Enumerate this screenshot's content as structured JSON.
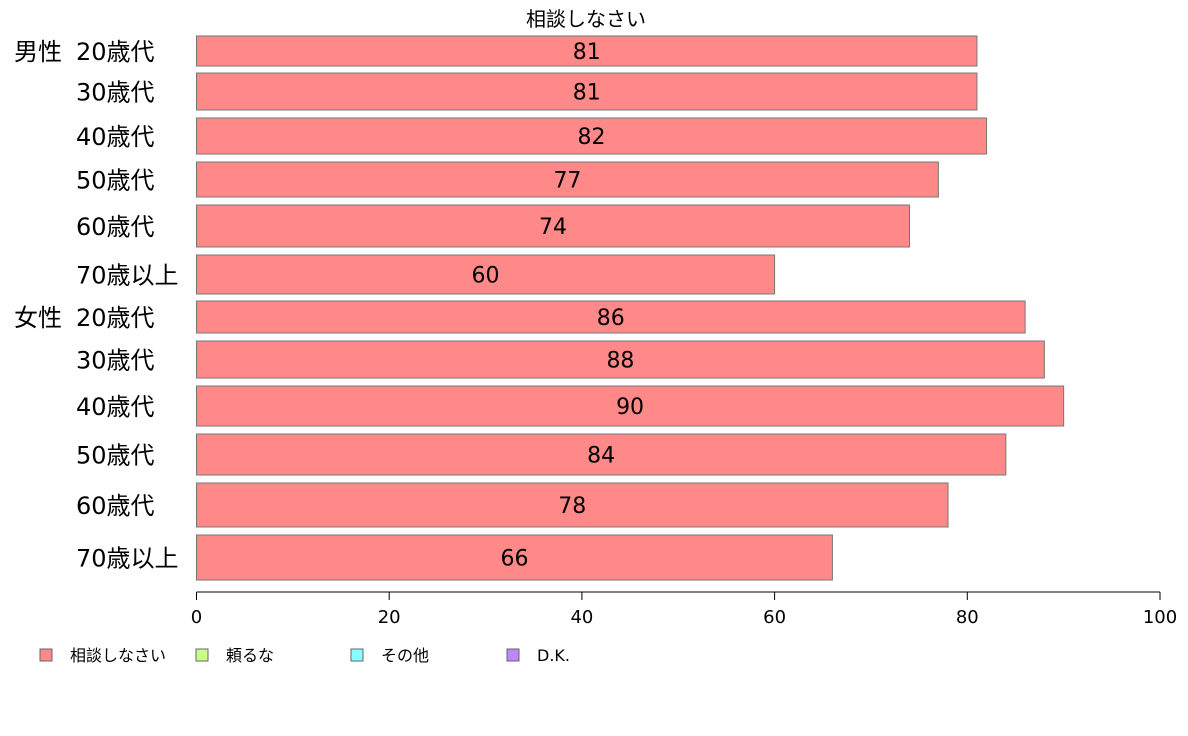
{
  "chart_data": {
    "type": "bar",
    "orientation": "horizontal",
    "title": "相談しなさい",
    "groups": [
      "男性",
      "女性"
    ],
    "categories": [
      {
        "group": "男性",
        "label": "20歳代"
      },
      {
        "group": "",
        "label": "30歳代"
      },
      {
        "group": "",
        "label": "40歳代"
      },
      {
        "group": "",
        "label": "50歳代"
      },
      {
        "group": "",
        "label": "60歳代"
      },
      {
        "group": "",
        "label": "70歳以上"
      },
      {
        "group": "女性",
        "label": "20歳代"
      },
      {
        "group": "",
        "label": "30歳代"
      },
      {
        "group": "",
        "label": "40歳代"
      },
      {
        "group": "",
        "label": "50歳代"
      },
      {
        "group": "",
        "label": "60歳代"
      },
      {
        "group": "",
        "label": "70歳以上"
      }
    ],
    "series": [
      {
        "name": "相談しなさい",
        "color": "#ff8888",
        "values": [
          81,
          81,
          82,
          77,
          74,
          60,
          86,
          88,
          90,
          84,
          78,
          66
        ],
        "labels": [
          "81",
          "81",
          "82",
          "77",
          "74",
          "60",
          "86",
          "88",
          "90",
          "84",
          "78",
          "66"
        ]
      }
    ],
    "xlim": [
      0,
      100
    ],
    "xticks": [
      0,
      20,
      40,
      60,
      80,
      100
    ],
    "xtick_labels": [
      "0",
      "20",
      "40",
      "60",
      "80",
      "100"
    ],
    "grid": false,
    "legend": {
      "placement": "bottom-left",
      "items": [
        {
          "name": "相談しなさい",
          "color": "#ff8888"
        },
        {
          "name": "頼るな",
          "color": "#c8ff88"
        },
        {
          "name": "その他",
          "color": "#88ffff"
        },
        {
          "name": "D.K.",
          "color": "#bb88ff"
        }
      ]
    }
  }
}
